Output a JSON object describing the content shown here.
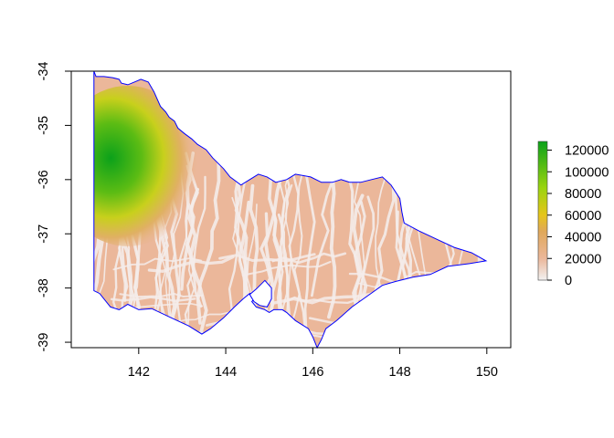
{
  "map": {
    "extent": {
      "lon": [
        140.45,
        150.55
      ],
      "lat": [
        -39.1,
        -34.0
      ]
    },
    "x_ticks": [
      142,
      144,
      146,
      148,
      150
    ],
    "y_ticks": [
      -34,
      -35,
      -36,
      -37,
      -38,
      -39
    ],
    "boundary_color": "#0000ff",
    "background": "#ffffff"
  },
  "legend": {
    "range": [
      0,
      128000
    ],
    "tick_values": [
      0,
      20000,
      40000,
      60000,
      80000,
      100000,
      120000
    ],
    "tick_labels": [
      "0",
      "20000",
      "40000",
      "60000",
      "80000",
      "100000",
      "120000"
    ],
    "color_stops": [
      {
        "value": 0,
        "color": "#f2f2f2"
      },
      {
        "value": 20000,
        "color": "#ebb79a"
      },
      {
        "value": 45000,
        "color": "#e0a85a"
      },
      {
        "value": 60000,
        "color": "#e6c51a"
      },
      {
        "value": 85000,
        "color": "#9bd40f"
      },
      {
        "value": 128000,
        "color": "#0ba11a"
      }
    ]
  }
}
